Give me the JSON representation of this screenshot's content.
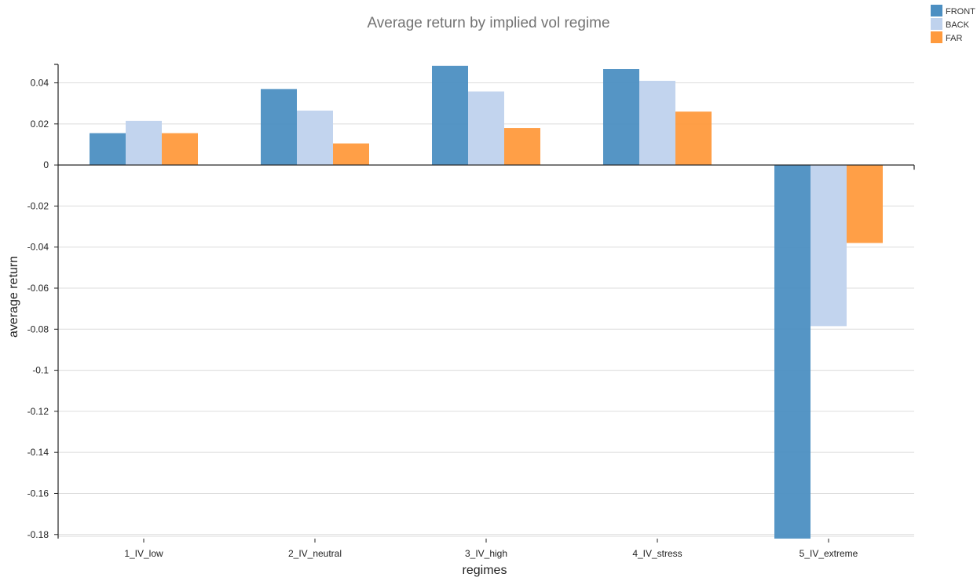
{
  "chart_data": {
    "type": "bar",
    "title": "Average return by implied vol regime",
    "xlabel": "regimes",
    "ylabel": "average return",
    "categories": [
      "1_IV_low",
      "2_IV_neutral",
      "3_IV_high",
      "4_IV_stress",
      "5_IV_extreme"
    ],
    "series": [
      {
        "name": "FRONT",
        "color": "#4c8fc2",
        "values": [
          0.0155,
          0.037,
          0.0483,
          0.0467,
          -0.182
        ]
      },
      {
        "name": "BACK",
        "color": "#bfd2ed",
        "values": [
          0.0215,
          0.0265,
          0.0358,
          0.041,
          -0.0785
        ]
      },
      {
        "name": "FAR",
        "color": "#ff9a3d",
        "values": [
          0.0155,
          0.0105,
          0.018,
          0.026,
          -0.038
        ]
      }
    ],
    "ylim": [
      -0.182,
      0.049
    ],
    "yticks": [
      0.04,
      0.02,
      0,
      -0.02,
      -0.04,
      -0.06,
      -0.08,
      -0.1,
      -0.12,
      -0.14,
      -0.16,
      -0.18
    ],
    "ytick_labels": [
      "0.04",
      "0.02",
      "0",
      "-0.02",
      "-0.04",
      "-0.06",
      "-0.08",
      "-0.1",
      "-0.12",
      "-0.14",
      "-0.16",
      "-0.18"
    ],
    "grid": true,
    "legend_position": "top-right"
  }
}
